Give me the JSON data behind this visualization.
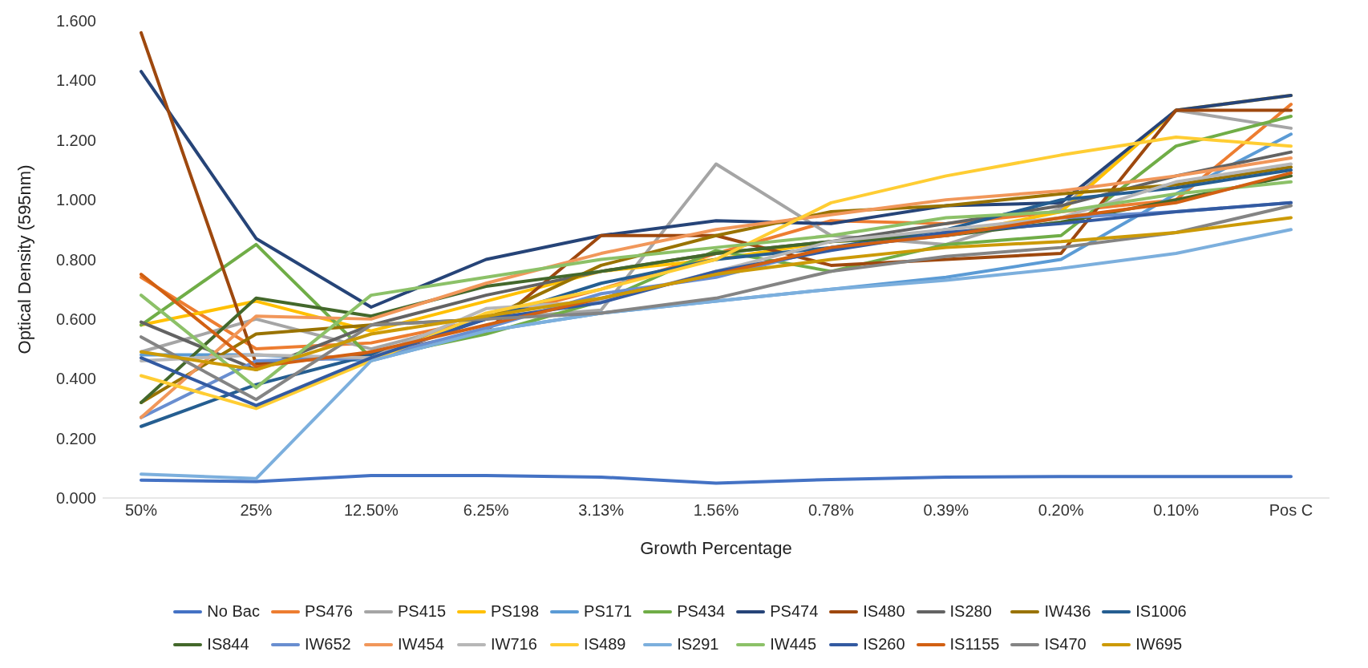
{
  "chart_data": {
    "type": "line",
    "xlabel": "Growth Percentage",
    "ylabel": "Optical Density (595nm)",
    "categories": [
      "50%",
      "25%",
      "12.50%",
      "6.25%",
      "3.13%",
      "1.56%",
      "0.78%",
      "0.39%",
      "0.20%",
      "0.10%",
      "Pos C"
    ],
    "ylim": [
      0,
      1.6
    ],
    "yticks": [
      {
        "value": 0,
        "label": "0.000"
      },
      {
        "value": 0.2,
        "label": "0.200"
      },
      {
        "value": 0.4,
        "label": "0.400"
      },
      {
        "value": 0.6,
        "label": "0.600"
      },
      {
        "value": 0.8,
        "label": "0.800"
      },
      {
        "value": 1,
        "label": "1.000"
      },
      {
        "value": 1.2,
        "label": "1.200"
      },
      {
        "value": 1.4,
        "label": "1.400"
      },
      {
        "value": 1.6,
        "label": "1.600"
      }
    ],
    "grid": false,
    "legend": "bottom",
    "marker": "none",
    "line_style": "solid",
    "series": [
      {
        "name": "No Bac",
        "color": "#4472c4",
        "values": [
          0.06,
          0.055,
          0.075,
          0.075,
          0.07,
          0.05,
          0.062,
          0.07,
          0.072,
          0.072,
          0.072
        ]
      },
      {
        "name": "PS476",
        "color": "#ed7d31",
        "values": [
          0.74,
          0.5,
          0.52,
          0.6,
          0.7,
          0.82,
          0.93,
          0.92,
          0.96,
          1.0,
          1.32
        ]
      },
      {
        "name": "PS415",
        "color": "#a5a5a5",
        "values": [
          0.49,
          0.6,
          0.5,
          0.6,
          0.63,
          1.12,
          0.88,
          0.85,
          0.97,
          1.3,
          1.24
        ]
      },
      {
        "name": "PS198",
        "color": "#ffc000",
        "values": [
          0.58,
          0.66,
          0.56,
          0.66,
          0.76,
          0.8,
          0.86,
          0.88,
          0.96,
          1.3,
          1.35
        ]
      },
      {
        "name": "PS171",
        "color": "#5b9bd5",
        "values": [
          0.48,
          0.48,
          0.46,
          0.56,
          0.62,
          0.66,
          0.7,
          0.74,
          0.8,
          1.02,
          1.22
        ]
      },
      {
        "name": "PS434",
        "color": "#70ad47",
        "values": [
          0.58,
          0.85,
          0.47,
          0.55,
          0.66,
          0.83,
          0.76,
          0.85,
          0.88,
          1.18,
          1.28
        ]
      },
      {
        "name": "PS474",
        "color": "#264478",
        "values": [
          1.43,
          0.87,
          0.64,
          0.8,
          0.88,
          0.93,
          0.92,
          0.98,
          0.99,
          1.3,
          1.35
        ]
      },
      {
        "name": "IS480",
        "color": "#9e480e",
        "values": [
          1.56,
          0.45,
          0.48,
          0.56,
          0.88,
          0.88,
          0.78,
          0.8,
          0.82,
          1.3,
          1.3
        ]
      },
      {
        "name": "IS280",
        "color": "#636363",
        "values": [
          0.59,
          0.43,
          0.58,
          0.68,
          0.76,
          0.82,
          0.86,
          0.92,
          0.98,
          1.08,
          1.16
        ]
      },
      {
        "name": "IW436",
        "color": "#997300",
        "values": [
          0.32,
          0.55,
          0.58,
          0.6,
          0.78,
          0.88,
          0.96,
          0.98,
          1.02,
          1.05,
          1.11
        ]
      },
      {
        "name": "IS1006",
        "color": "#255e91",
        "values": [
          0.24,
          0.38,
          0.48,
          0.6,
          0.72,
          0.8,
          0.84,
          0.9,
          1.0,
          1.04,
          1.1
        ]
      },
      {
        "name": "IS844",
        "color": "#43682b",
        "values": [
          0.32,
          0.67,
          0.61,
          0.71,
          0.76,
          0.82,
          0.86,
          0.88,
          0.925,
          1.0,
          1.08
        ]
      },
      {
        "name": "IW652",
        "color": "#698ed0",
        "values": [
          0.27,
          0.46,
          0.47,
          0.57,
          0.685,
          0.74,
          0.84,
          0.88,
          0.94,
          0.96,
          0.99
        ]
      },
      {
        "name": "IW454",
        "color": "#f1975a",
        "values": [
          0.27,
          0.61,
          0.6,
          0.72,
          0.82,
          0.9,
          0.95,
          1.0,
          1.03,
          1.08,
          1.14
        ]
      },
      {
        "name": "IW716",
        "color": "#b7b7b7",
        "values": [
          0.46,
          0.48,
          0.47,
          0.635,
          0.66,
          0.76,
          0.86,
          0.9,
          0.94,
          1.06,
          1.12
        ]
      },
      {
        "name": "IS489",
        "color": "#ffcd33",
        "values": [
          0.41,
          0.3,
          0.46,
          0.62,
          0.7,
          0.8,
          0.99,
          1.08,
          1.15,
          1.21,
          1.18
        ]
      },
      {
        "name": "IS291",
        "color": "#7cafdd",
        "values": [
          0.08,
          0.065,
          0.46,
          0.56,
          0.62,
          0.66,
          0.7,
          0.73,
          0.77,
          0.82,
          0.9
        ]
      },
      {
        "name": "IW445",
        "color": "#8cc168",
        "values": [
          0.68,
          0.37,
          0.68,
          0.74,
          0.8,
          0.84,
          0.88,
          0.94,
          0.96,
          1.02,
          1.06
        ]
      },
      {
        "name": "IS260",
        "color": "#335aa1",
        "values": [
          0.47,
          0.31,
          0.47,
          0.6,
          0.655,
          0.76,
          0.83,
          0.89,
          0.92,
          0.96,
          0.99
        ]
      },
      {
        "name": "IS1155",
        "color": "#d26012",
        "values": [
          0.75,
          0.44,
          0.49,
          0.58,
          0.67,
          0.75,
          0.84,
          0.88,
          0.94,
          0.99,
          1.09
        ]
      },
      {
        "name": "IS470",
        "color": "#848484",
        "values": [
          0.54,
          0.33,
          0.58,
          0.6,
          0.62,
          0.67,
          0.76,
          0.81,
          0.84,
          0.89,
          0.98
        ]
      },
      {
        "name": "IW695",
        "color": "#cc9a06",
        "values": [
          0.49,
          0.43,
          0.55,
          0.61,
          0.67,
          0.75,
          0.8,
          0.84,
          0.86,
          0.89,
          0.94
        ]
      }
    ]
  }
}
